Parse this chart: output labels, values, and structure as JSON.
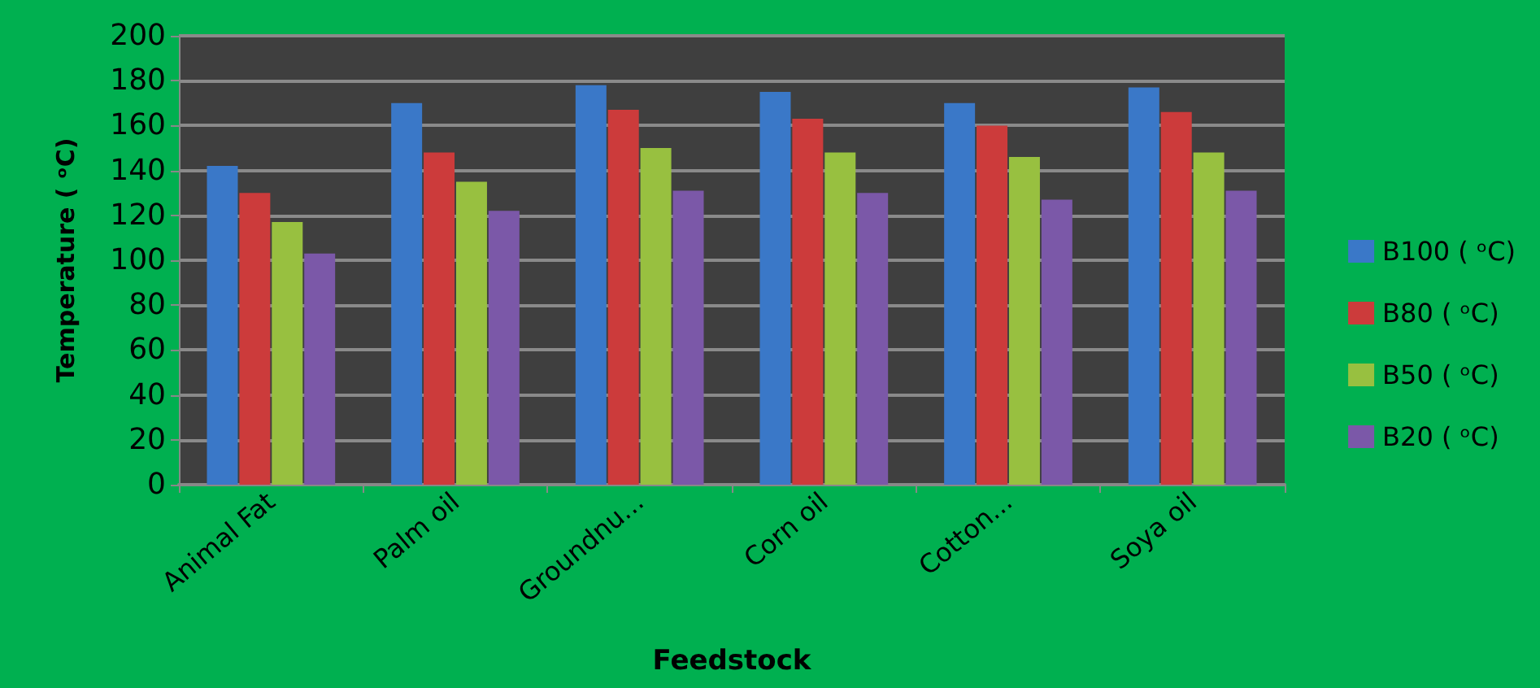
{
  "chart_data": {
    "type": "bar",
    "xlabel": "Feedstock",
    "ylabel": "Temperature ( ᵒC)",
    "categories": [
      "Animal Fat",
      "Palm oil",
      "Groundnu...",
      "Corn oil",
      "Cotton...",
      "Soya oil"
    ],
    "series": [
      {
        "name": "B100 ( ᵒC)",
        "color": "#3a78c8",
        "values": [
          142,
          170,
          178,
          175,
          170,
          177
        ]
      },
      {
        "name": "B80 ( ᵒC)",
        "color": "#cc3b3b",
        "values": [
          130,
          148,
          167,
          163,
          160,
          166
        ]
      },
      {
        "name": "B50 ( ᵒC)",
        "color": "#98c040",
        "values": [
          117,
          135,
          150,
          148,
          146,
          148
        ]
      },
      {
        "name": "B20 ( ᵒC)",
        "color": "#7b58a8",
        "values": [
          103,
          122,
          131,
          130,
          127,
          131
        ]
      }
    ],
    "ylim": [
      0,
      200
    ],
    "yticks": [
      0,
      20,
      40,
      60,
      80,
      100,
      120,
      140,
      160,
      180,
      200
    ],
    "grid": "y",
    "legend": "right"
  }
}
